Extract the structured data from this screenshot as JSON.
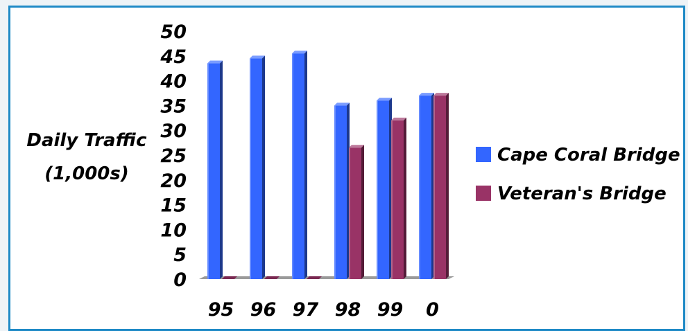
{
  "colors": {
    "frame_border": "#1f8ac6",
    "background": "#ffffff",
    "floor": "#9a9a9a"
  },
  "chart_data": {
    "type": "bar",
    "title": "",
    "xlabel": "",
    "ylabel": "Daily Traffic (1,000s)",
    "ylabel_lines": [
      "Daily Traffic",
      "(1,000s)"
    ],
    "categories": [
      "95",
      "96",
      "97",
      "98",
      "99",
      "0"
    ],
    "ylim": [
      0,
      50
    ],
    "yticks": [
      0,
      5,
      10,
      15,
      20,
      25,
      30,
      35,
      40,
      45,
      50
    ],
    "grid": false,
    "three_d": true,
    "legend_position": "right",
    "series": [
      {
        "name": "Cape Coral Bridge",
        "color": "#3366ff",
        "values": [
          43.5,
          44.5,
          45.5,
          35,
          36,
          37
        ]
      },
      {
        "name": "Veteran's Bridge",
        "color": "#993366",
        "values": [
          0,
          0,
          0,
          26.5,
          32,
          37
        ]
      }
    ]
  }
}
